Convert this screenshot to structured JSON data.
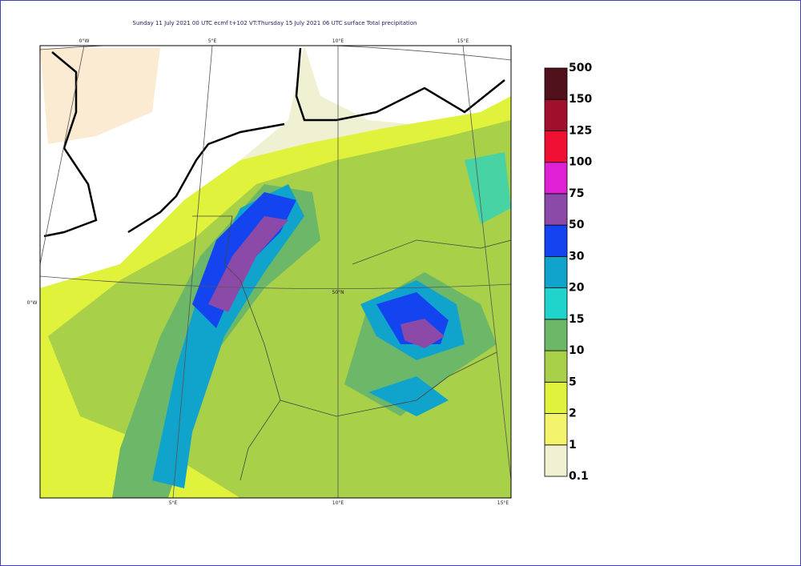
{
  "header": {
    "title": "Sunday 11 July 2021 00 UTC ecmf t+102 VT:Thursday 15 July 2021 06 UTC surface  Total precipitation"
  },
  "map": {
    "grid_labels": [
      "0°W",
      "5°E",
      "10°E",
      "15°E",
      "5°E",
      "10°E",
      "15°E",
      "0°W",
      "50°N"
    ]
  },
  "legend": {
    "levels": [
      "0.1",
      "1",
      "2",
      "5",
      "10",
      "15",
      "20",
      "30",
      "50",
      "75",
      "100",
      "125",
      "150",
      "500"
    ],
    "colors": [
      "#f0f0d2",
      "#f4f46c",
      "#e0f23c",
      "#a8d048",
      "#6cb868",
      "#20d4cc",
      "#10a4cc",
      "#1444f0",
      "#8c4aa8",
      "#e020d4",
      "#f01034",
      "#a0102c",
      "#50101c"
    ]
  }
}
